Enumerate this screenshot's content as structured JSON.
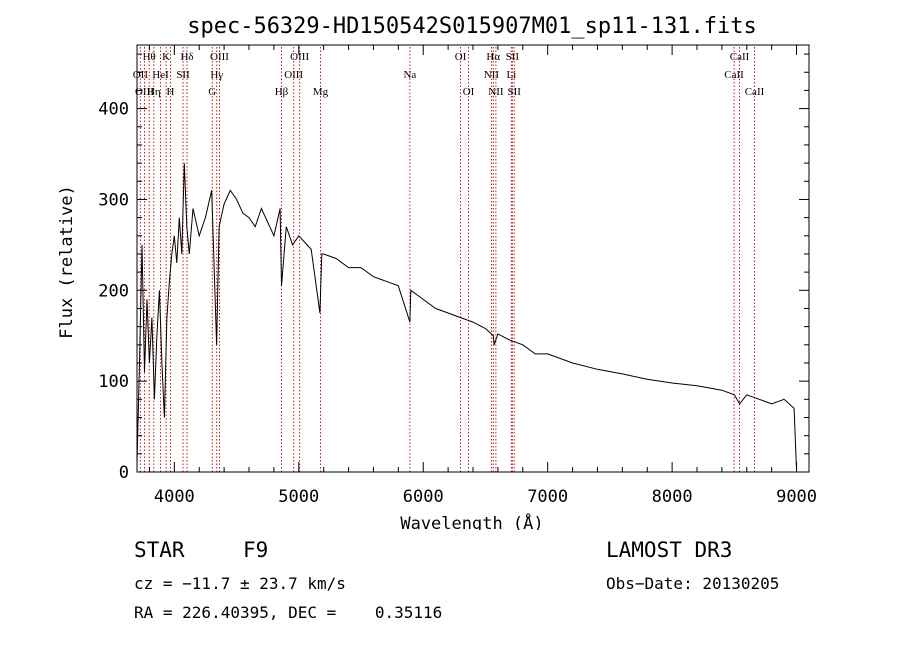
{
  "chart_data": {
    "type": "line",
    "title": "spec-56329-HD150542S015907M01_sp11-131.fits",
    "xlabel": "Wavelength (Å)",
    "ylabel": "Flux (relative)",
    "xlim": [
      3700,
      9100
    ],
    "ylim": [
      0,
      470
    ],
    "xticks": [
      4000,
      5000,
      6000,
      7000,
      8000,
      9000
    ],
    "yticks": [
      0,
      100,
      200,
      300,
      400
    ],
    "grid": false,
    "line_color": "#000000",
    "marker_color": "#c00000",
    "series": [
      {
        "x": [
          3700,
          3720,
          3740,
          3760,
          3780,
          3800,
          3820,
          3840,
          3860,
          3880,
          3900,
          3920,
          3940,
          3960,
          3980,
          4000,
          4020,
          4040,
          4060,
          4080,
          4100,
          4120,
          4150,
          4200,
          4250,
          4300,
          4340,
          4360,
          4400,
          4450,
          4500,
          4550,
          4600,
          4650,
          4700,
          4750,
          4800,
          4850,
          4861,
          4900,
          4950,
          5000,
          5100,
          5170,
          5185,
          5200,
          5300,
          5400,
          5500,
          5600,
          5700,
          5800,
          5893,
          5900,
          6000,
          6100,
          6200,
          6300,
          6400,
          6500,
          6563,
          6570,
          6600,
          6700,
          6800,
          6900,
          7000,
          7200,
          7400,
          7600,
          7800,
          8000,
          8200,
          8400,
          8500,
          8542,
          8600,
          8700,
          8800,
          8900,
          8980,
          9000
        ],
        "values": [
          10,
          120,
          250,
          110,
          190,
          120,
          170,
          80,
          150,
          200,
          120,
          60,
          170,
          210,
          240,
          260,
          230,
          280,
          240,
          340,
          270,
          240,
          290,
          260,
          280,
          310,
          140,
          270,
          295,
          310,
          300,
          285,
          280,
          270,
          290,
          275,
          260,
          290,
          205,
          270,
          250,
          260,
          245,
          175,
          240,
          240,
          235,
          225,
          225,
          215,
          210,
          205,
          165,
          200,
          190,
          180,
          175,
          170,
          165,
          158,
          150,
          140,
          152,
          145,
          140,
          130,
          130,
          120,
          113,
          108,
          102,
          98,
          95,
          90,
          85,
          75,
          85,
          80,
          75,
          80,
          70,
          0
        ]
      }
    ],
    "lines": [
      {
        "label": "Hθ",
        "x": 3798,
        "row": 0
      },
      {
        "label": "OII",
        "x": 3727,
        "row": 1
      },
      {
        "label": "OIII",
        "x": 3760,
        "row": 2
      },
      {
        "label": "K",
        "x": 3934,
        "row": 0
      },
      {
        "label": "HeI",
        "x": 3889,
        "row": 1
      },
      {
        "label": "Hη",
        "x": 3835,
        "row": 2
      },
      {
        "label": "H",
        "x": 3969,
        "row": 2
      },
      {
        "label": "SII",
        "x": 4070,
        "row": 1
      },
      {
        "label": "Hδ",
        "x": 4102,
        "row": 0
      },
      {
        "label": "OIII",
        "x": 4363,
        "row": 0
      },
      {
        "label": "Hγ",
        "x": 4341,
        "row": 1
      },
      {
        "label": "G",
        "x": 4305,
        "row": 2
      },
      {
        "label": "OIII",
        "x": 5007,
        "row": 0
      },
      {
        "label": "OIII",
        "x": 4959,
        "row": 1
      },
      {
        "label": "Hβ",
        "x": 4861,
        "row": 2
      },
      {
        "label": "Mg",
        "x": 5175,
        "row": 2
      },
      {
        "label": "Na",
        "x": 5893,
        "row": 1
      },
      {
        "label": "OI",
        "x": 6300,
        "row": 0
      },
      {
        "label": "OI",
        "x": 6364,
        "row": 2
      },
      {
        "label": "Hα",
        "x": 6563,
        "row": 0
      },
      {
        "label": "SII",
        "x": 6716,
        "row": 0
      },
      {
        "label": "NII",
        "x": 6548,
        "row": 1
      },
      {
        "label": "Li",
        "x": 6708,
        "row": 1
      },
      {
        "label": "NII",
        "x": 6584,
        "row": 2
      },
      {
        "label": "SII",
        "x": 6731,
        "row": 2
      },
      {
        "label": "CaII",
        "x": 8542,
        "row": 0
      },
      {
        "label": "CaII",
        "x": 8498,
        "row": 1
      },
      {
        "label": "CaII",
        "x": 8662,
        "row": 2
      }
    ]
  },
  "footer": {
    "object_class": "STAR",
    "subclass": "F9",
    "survey": "LAMOST DR3",
    "cz": "cz = −11.7 ± 23.7 km/s",
    "obs_date": "Obs−Date: 20130205",
    "coords": "RA = 226.40395, DEC =    0.35116"
  }
}
